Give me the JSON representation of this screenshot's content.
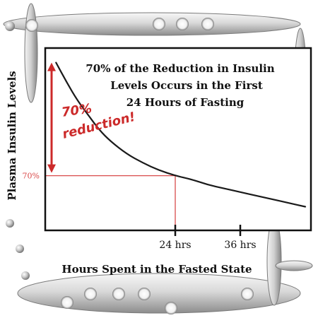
{
  "chart_data": {
    "type": "line",
    "title": "70% of the Reduction in Insulin Levels Occurs in the First 24 Hours of Fasting",
    "title_lines": [
      "70% of the Reduction in Insulin",
      "Levels Occurs in the First",
      "24 Hours of Fasting"
    ],
    "xlabel": "Hours Spent in the Fasted State",
    "ylabel": "Plasma Insulin Levels",
    "xlim": [
      0,
      48
    ],
    "ylim": [
      0,
      100
    ],
    "x_ticks": [
      {
        "value": 24,
        "label": "24 hrs"
      },
      {
        "value": 36,
        "label": "36 hrs"
      }
    ],
    "y_marker": {
      "value": 30,
      "label": "70%"
    },
    "grid": false,
    "series": [
      {
        "x": [
          2,
          4,
          6,
          8,
          10,
          12,
          15,
          18,
          21,
          24,
          27,
          30,
          33,
          36,
          39,
          42,
          45,
          48
        ],
        "y": [
          92,
          81,
          71,
          63,
          55,
          49,
          42,
          37,
          33,
          30,
          28,
          25,
          23,
          21,
          19,
          17,
          15,
          13
        ]
      }
    ],
    "annotation": {
      "lines": [
        "70%",
        "reduction!"
      ],
      "color": "#cc2a2a",
      "arrow_range": [
        30,
        92
      ]
    },
    "colors": {
      "curve": "#1a1a1a",
      "marker": "#d94a4a",
      "frame": "#111111",
      "annotation": "#cc2a2a"
    }
  }
}
